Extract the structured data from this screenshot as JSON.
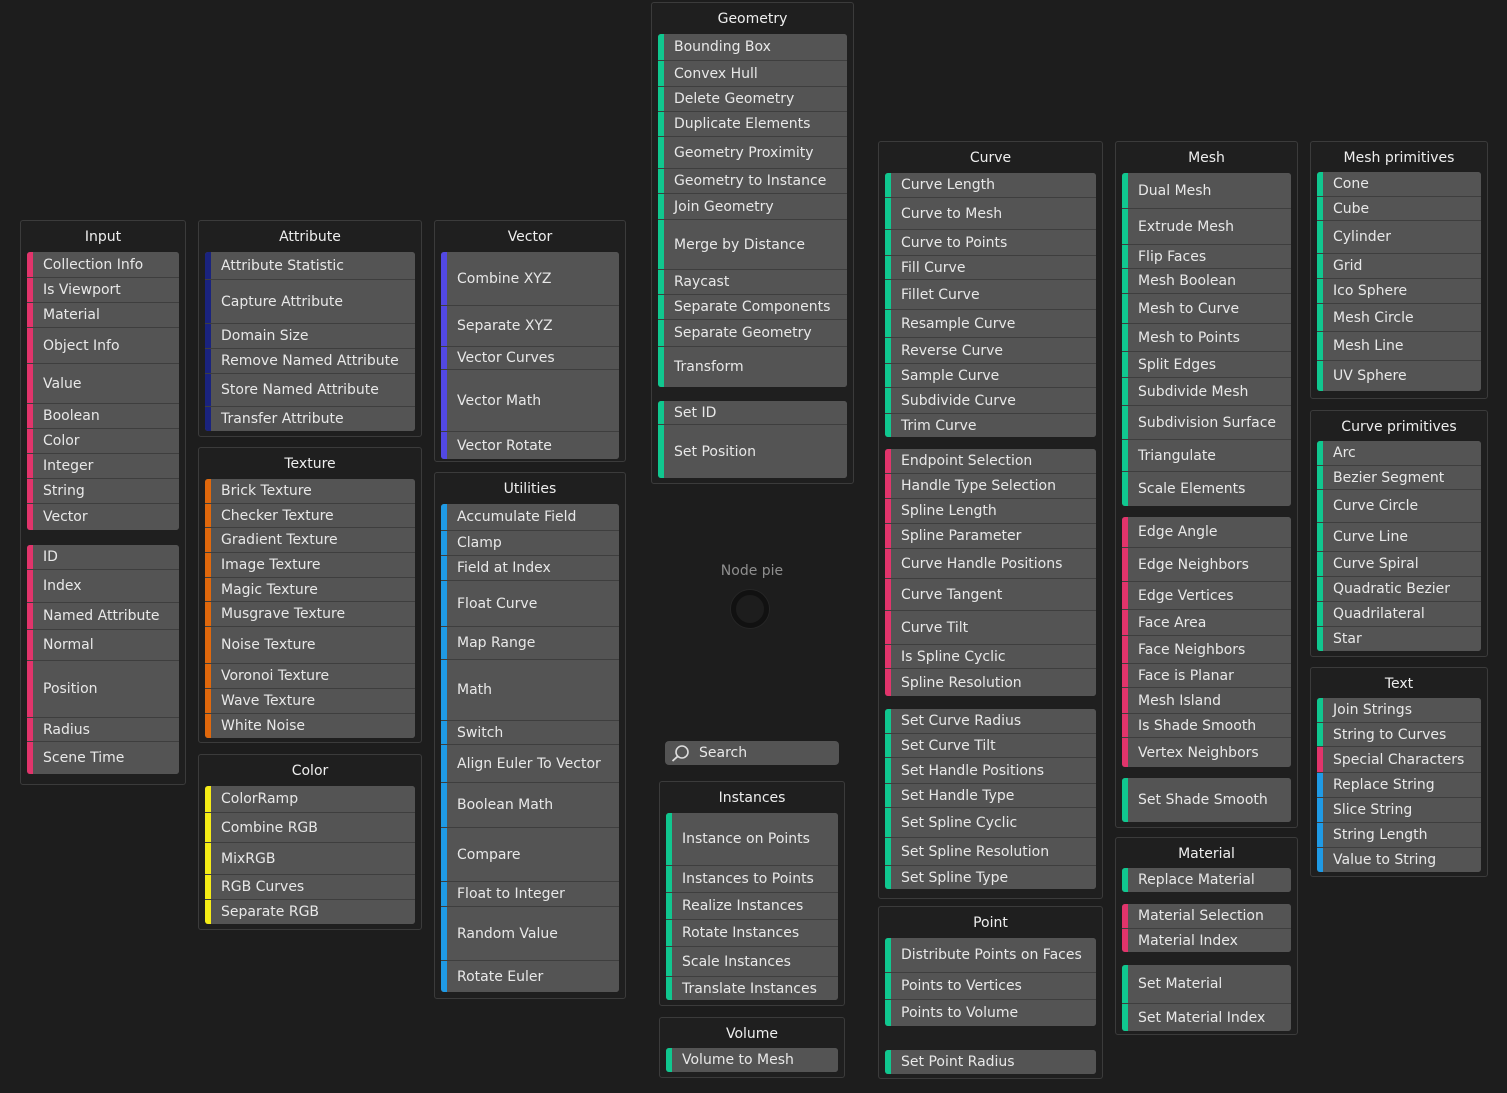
{
  "center": {
    "title": "Node pie"
  },
  "search": {
    "label": "Search"
  },
  "colors": {
    "pink": "#e1346b",
    "navy": "#1a237e",
    "orange": "#e0680c",
    "yellow": "#f5ec16",
    "indigo": "#5248e3",
    "blue": "#1f9ae5",
    "green": "#10c78f"
  },
  "panels": [
    {
      "title": "Input",
      "groups": [
        {
          "items": [
            {
              "label": "Collection Info",
              "color": "pink"
            },
            {
              "label": "Is Viewport",
              "color": "pink"
            },
            {
              "label": "Material",
              "color": "pink"
            },
            {
              "label": "Object Info",
              "color": "pink"
            },
            {
              "label": "Value",
              "color": "pink"
            },
            {
              "label": "Boolean",
              "color": "pink"
            },
            {
              "label": "Color",
              "color": "pink"
            },
            {
              "label": "Integer",
              "color": "pink"
            },
            {
              "label": "String",
              "color": "pink"
            },
            {
              "label": "Vector",
              "color": "pink"
            }
          ]
        },
        {
          "items": [
            {
              "label": "ID",
              "color": "pink"
            },
            {
              "label": "Index",
              "color": "pink"
            },
            {
              "label": "Named Attribute",
              "color": "pink"
            },
            {
              "label": "Normal",
              "color": "pink"
            },
            {
              "label": "Position",
              "color": "pink"
            },
            {
              "label": "Radius",
              "color": "pink"
            },
            {
              "label": "Scene Time",
              "color": "pink"
            }
          ]
        }
      ]
    },
    {
      "title": "Attribute",
      "groups": [
        {
          "items": [
            {
              "label": "Attribute Statistic",
              "color": "navy"
            },
            {
              "label": "Capture Attribute",
              "color": "navy"
            },
            {
              "label": "Domain Size",
              "color": "navy"
            },
            {
              "label": "Remove Named Attribute",
              "color": "navy"
            },
            {
              "label": "Store Named Attribute",
              "color": "navy"
            },
            {
              "label": "Transfer Attribute",
              "color": "navy"
            }
          ]
        }
      ]
    },
    {
      "title": "Texture",
      "groups": [
        {
          "items": [
            {
              "label": "Brick Texture",
              "color": "orange"
            },
            {
              "label": "Checker Texture",
              "color": "orange"
            },
            {
              "label": "Gradient Texture",
              "color": "orange"
            },
            {
              "label": "Image Texture",
              "color": "orange"
            },
            {
              "label": "Magic Texture",
              "color": "orange"
            },
            {
              "label": "Musgrave Texture",
              "color": "orange"
            },
            {
              "label": "Noise Texture",
              "color": "orange"
            },
            {
              "label": "Voronoi Texture",
              "color": "orange"
            },
            {
              "label": "Wave Texture",
              "color": "orange"
            },
            {
              "label": "White Noise",
              "color": "orange"
            }
          ]
        }
      ]
    },
    {
      "title": "Color",
      "groups": [
        {
          "items": [
            {
              "label": "ColorRamp",
              "color": "yellow"
            },
            {
              "label": "Combine RGB",
              "color": "yellow"
            },
            {
              "label": "MixRGB",
              "color": "yellow"
            },
            {
              "label": "RGB Curves",
              "color": "yellow"
            },
            {
              "label": "Separate RGB",
              "color": "yellow"
            }
          ]
        }
      ]
    },
    {
      "title": "Vector",
      "groups": [
        {
          "items": [
            {
              "label": "Combine XYZ",
              "color": "indigo"
            },
            {
              "label": "Separate XYZ",
              "color": "indigo"
            },
            {
              "label": "Vector Curves",
              "color": "indigo"
            },
            {
              "label": "Vector Math",
              "color": "indigo"
            },
            {
              "label": "Vector Rotate",
              "color": "indigo"
            }
          ]
        }
      ]
    },
    {
      "title": "Utilities",
      "groups": [
        {
          "items": [
            {
              "label": "Accumulate Field",
              "color": "blue"
            },
            {
              "label": "Clamp",
              "color": "blue"
            },
            {
              "label": "Field at Index",
              "color": "blue"
            },
            {
              "label": "Float Curve",
              "color": "blue"
            },
            {
              "label": "Map Range",
              "color": "blue"
            },
            {
              "label": "Math",
              "color": "blue"
            },
            {
              "label": "Switch",
              "color": "blue"
            },
            {
              "label": "Align Euler To Vector",
              "color": "blue"
            },
            {
              "label": "Boolean Math",
              "color": "blue"
            },
            {
              "label": "Compare",
              "color": "blue"
            },
            {
              "label": "Float to Integer",
              "color": "blue"
            },
            {
              "label": "Random Value",
              "color": "blue"
            },
            {
              "label": "Rotate Euler",
              "color": "blue"
            }
          ]
        }
      ]
    },
    {
      "title": "Geometry",
      "groups": [
        {
          "items": [
            {
              "label": "Bounding Box",
              "color": "green"
            },
            {
              "label": "Convex Hull",
              "color": "green"
            },
            {
              "label": "Delete Geometry",
              "color": "green"
            },
            {
              "label": "Duplicate Elements",
              "color": "green"
            },
            {
              "label": "Geometry Proximity",
              "color": "green"
            },
            {
              "label": "Geometry to Instance",
              "color": "green"
            },
            {
              "label": "Join Geometry",
              "color": "green"
            },
            {
              "label": "Merge by Distance",
              "color": "green"
            },
            {
              "label": "Raycast",
              "color": "green"
            },
            {
              "label": "Separate Components",
              "color": "green"
            },
            {
              "label": "Separate Geometry",
              "color": "green"
            },
            {
              "label": "Transform",
              "color": "green"
            }
          ]
        },
        {
          "items": [
            {
              "label": "Set ID",
              "color": "green"
            },
            {
              "label": "Set Position",
              "color": "green"
            }
          ]
        }
      ]
    },
    {
      "title": "Instances",
      "groups": [
        {
          "items": [
            {
              "label": "Instance on Points",
              "color": "green"
            },
            {
              "label": "Instances to Points",
              "color": "green"
            },
            {
              "label": "Realize Instances",
              "color": "green"
            },
            {
              "label": "Rotate Instances",
              "color": "green"
            },
            {
              "label": "Scale Instances",
              "color": "green"
            },
            {
              "label": "Translate Instances",
              "color": "green"
            }
          ]
        }
      ]
    },
    {
      "title": "Volume",
      "groups": [
        {
          "items": [
            {
              "label": "Volume to Mesh",
              "color": "green"
            }
          ]
        }
      ]
    },
    {
      "title": "Curve",
      "groups": [
        {
          "items": [
            {
              "label": "Curve Length",
              "color": "green"
            },
            {
              "label": "Curve to Mesh",
              "color": "green"
            },
            {
              "label": "Curve to Points",
              "color": "green"
            },
            {
              "label": "Fill Curve",
              "color": "green"
            },
            {
              "label": "Fillet Curve",
              "color": "green"
            },
            {
              "label": "Resample Curve",
              "color": "green"
            },
            {
              "label": "Reverse Curve",
              "color": "green"
            },
            {
              "label": "Sample Curve",
              "color": "green"
            },
            {
              "label": "Subdivide Curve",
              "color": "green"
            },
            {
              "label": "Trim Curve",
              "color": "green"
            }
          ]
        },
        {
          "items": [
            {
              "label": "Endpoint Selection",
              "color": "pink"
            },
            {
              "label": "Handle Type Selection",
              "color": "pink"
            },
            {
              "label": "Spline Length",
              "color": "pink"
            },
            {
              "label": "Spline Parameter",
              "color": "pink"
            },
            {
              "label": "Curve Handle Positions",
              "color": "pink"
            },
            {
              "label": "Curve Tangent",
              "color": "pink"
            },
            {
              "label": "Curve Tilt",
              "color": "pink"
            },
            {
              "label": "Is Spline Cyclic",
              "color": "pink"
            },
            {
              "label": "Spline Resolution",
              "color": "pink"
            }
          ]
        },
        {
          "items": [
            {
              "label": "Set Curve Radius",
              "color": "green"
            },
            {
              "label": "Set Curve Tilt",
              "color": "green"
            },
            {
              "label": "Set Handle Positions",
              "color": "green"
            },
            {
              "label": "Set Handle Type",
              "color": "green"
            },
            {
              "label": "Set Spline Cyclic",
              "color": "green"
            },
            {
              "label": "Set Spline Resolution",
              "color": "green"
            },
            {
              "label": "Set Spline Type",
              "color": "green"
            }
          ]
        }
      ]
    },
    {
      "title": "Point",
      "groups": [
        {
          "items": [
            {
              "label": "Distribute Points on Faces",
              "color": "green"
            },
            {
              "label": "Points to Vertices",
              "color": "green"
            },
            {
              "label": "Points to Volume",
              "color": "green"
            }
          ]
        },
        {
          "items": [
            {
              "label": "Set Point Radius",
              "color": "green"
            }
          ]
        }
      ]
    },
    {
      "title": "Mesh",
      "groups": [
        {
          "items": [
            {
              "label": "Dual Mesh",
              "color": "green"
            },
            {
              "label": "Extrude Mesh",
              "color": "green"
            },
            {
              "label": "Flip Faces",
              "color": "green"
            },
            {
              "label": "Mesh Boolean",
              "color": "green"
            },
            {
              "label": "Mesh to Curve",
              "color": "green"
            },
            {
              "label": "Mesh to Points",
              "color": "green"
            },
            {
              "label": "Split Edges",
              "color": "green"
            },
            {
              "label": "Subdivide Mesh",
              "color": "green"
            },
            {
              "label": "Subdivision Surface",
              "color": "green"
            },
            {
              "label": "Triangulate",
              "color": "green"
            },
            {
              "label": "Scale Elements",
              "color": "green"
            }
          ]
        },
        {
          "items": [
            {
              "label": "Edge Angle",
              "color": "pink"
            },
            {
              "label": "Edge Neighbors",
              "color": "pink"
            },
            {
              "label": "Edge Vertices",
              "color": "pink"
            },
            {
              "label": "Face Area",
              "color": "pink"
            },
            {
              "label": "Face Neighbors",
              "color": "pink"
            },
            {
              "label": "Face is Planar",
              "color": "pink"
            },
            {
              "label": "Mesh Island",
              "color": "pink"
            },
            {
              "label": "Is Shade Smooth",
              "color": "pink"
            },
            {
              "label": "Vertex Neighbors",
              "color": "pink"
            }
          ]
        },
        {
          "items": [
            {
              "label": "Set Shade Smooth",
              "color": "green"
            }
          ]
        }
      ]
    },
    {
      "title": "Material",
      "groups": [
        {
          "items": [
            {
              "label": "Replace Material",
              "color": "green"
            }
          ]
        },
        {
          "items": [
            {
              "label": "Material Selection",
              "color": "pink"
            },
            {
              "label": "Material Index",
              "color": "pink"
            }
          ]
        },
        {
          "items": [
            {
              "label": "Set Material",
              "color": "green"
            },
            {
              "label": "Set Material Index",
              "color": "green"
            }
          ]
        }
      ]
    },
    {
      "title": "Mesh primitives",
      "groups": [
        {
          "items": [
            {
              "label": "Cone",
              "color": "green"
            },
            {
              "label": "Cube",
              "color": "green"
            },
            {
              "label": "Cylinder",
              "color": "green"
            },
            {
              "label": "Grid",
              "color": "green"
            },
            {
              "label": "Ico Sphere",
              "color": "green"
            },
            {
              "label": "Mesh Circle",
              "color": "green"
            },
            {
              "label": "Mesh Line",
              "color": "green"
            },
            {
              "label": "UV Sphere",
              "color": "green"
            }
          ]
        }
      ]
    },
    {
      "title": "Curve primitives",
      "groups": [
        {
          "items": [
            {
              "label": "Arc",
              "color": "green"
            },
            {
              "label": "Bezier Segment",
              "color": "green"
            },
            {
              "label": "Curve Circle",
              "color": "green"
            },
            {
              "label": "Curve Line",
              "color": "green"
            },
            {
              "label": "Curve Spiral",
              "color": "green"
            },
            {
              "label": "Quadratic Bezier",
              "color": "green"
            },
            {
              "label": "Quadrilateral",
              "color": "green"
            },
            {
              "label": "Star",
              "color": "green"
            }
          ]
        }
      ]
    },
    {
      "title": "Text",
      "groups": [
        {
          "items": [
            {
              "label": "Join Strings",
              "color": "green"
            },
            {
              "label": "String to Curves",
              "color": "green"
            },
            {
              "label": "Special Characters",
              "color": "pink"
            },
            {
              "label": "Replace String",
              "color": "blue"
            },
            {
              "label": "Slice String",
              "color": "blue"
            },
            {
              "label": "String Length",
              "color": "blue"
            },
            {
              "label": "Value to String",
              "color": "blue"
            }
          ]
        }
      ]
    }
  ]
}
